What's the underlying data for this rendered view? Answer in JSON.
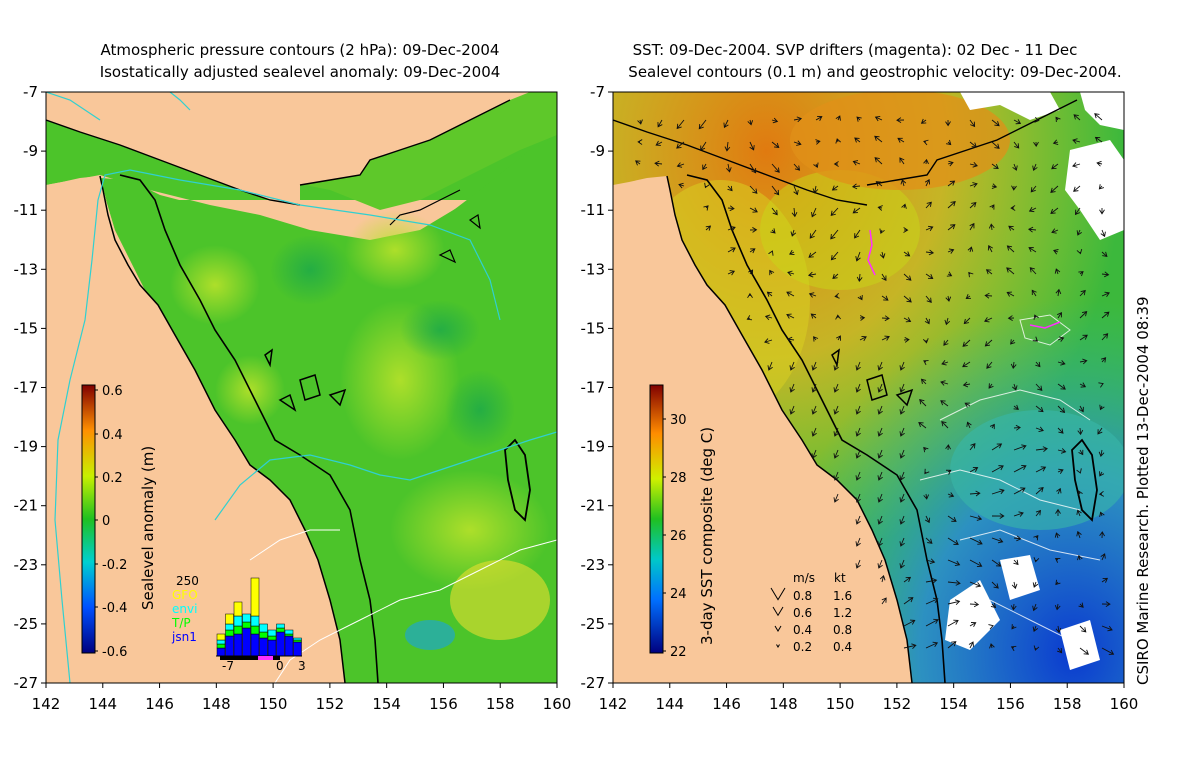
{
  "left_panel": {
    "title_line1": "Atmospheric pressure contours (2 hPa): 09-Dec-2004",
    "title_line2": "Isostatically adjusted sealevel anomaly: 09-Dec-2004",
    "colorbar_label": "Sealevel anomaly (m)",
    "colorbar_ticks": [
      "0.6",
      "0.4",
      "0.2",
      "0",
      "-0.2",
      "-0.4",
      "-0.6"
    ],
    "histogram": {
      "max_label": "250",
      "legend": [
        "GFO",
        "envi",
        "T/P",
        "jsn1"
      ],
      "legend_colors": [
        "#ffff00",
        "#00ffff",
        "#00ff00",
        "#0000ff"
      ],
      "x_ticks": [
        "-7",
        "0",
        "3"
      ]
    }
  },
  "right_panel": {
    "title_line1": "SST: 09-Dec-2004. SVP drifters (magenta): 02 Dec - 11 Dec",
    "title_line2": "Sealevel contours (0.1 m) and geostrophic velocity: 09-Dec-2004.",
    "colorbar_label": "3-day SST composite (deg C)",
    "colorbar_ticks": [
      "30",
      "28",
      "26",
      "24",
      "22"
    ],
    "velocity_key": {
      "header_ms": "m/s",
      "header_kt": "kt",
      "rows": [
        {
          "ms": "0.8",
          "kt": "1.6"
        },
        {
          "ms": "0.6",
          "kt": "1.2"
        },
        {
          "ms": "0.4",
          "kt": "0.8"
        },
        {
          "ms": "0.2",
          "kt": "0.4"
        }
      ]
    }
  },
  "y_ticks": [
    "-7",
    "-9",
    "-11",
    "-13",
    "-15",
    "-17",
    "-19",
    "-21",
    "-23",
    "-25",
    "-27"
  ],
  "x_ticks": [
    "142",
    "144",
    "146",
    "148",
    "150",
    "152",
    "154",
    "156",
    "158",
    "160"
  ],
  "credit": "CSIRO Marine Research. Plotted 13-Dec-2004 08:39",
  "colors": {
    "land": "#f9c79a",
    "sla_green": "#4cc42a",
    "sla_yellow_green": "#a8dc1e",
    "sst_orange": "#e88a18",
    "sst_green": "#3cb83c",
    "sst_blue": "#1a5ad8"
  }
}
